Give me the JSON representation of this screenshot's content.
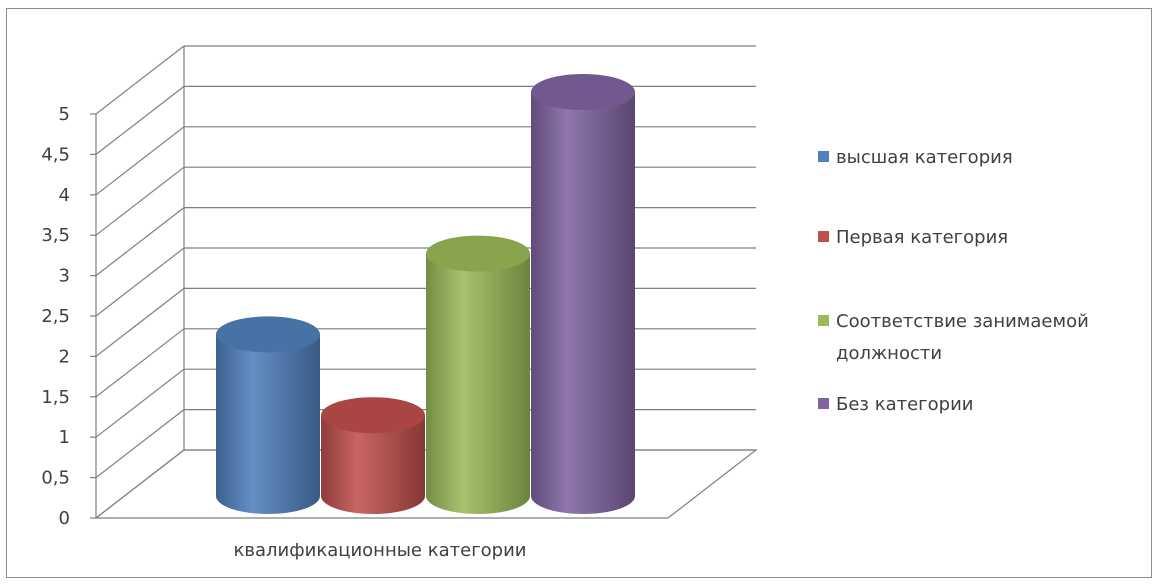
{
  "chart_data": {
    "type": "bar",
    "style": "3d-cylinder",
    "categories": [
      "квалификационные категории"
    ],
    "series": [
      {
        "name": "высшая категория",
        "values": [
          2
        ],
        "color": "#4f81bd"
      },
      {
        "name": "Первая категория",
        "values": [
          1
        ],
        "color": "#c0504d"
      },
      {
        "name": "Соответствие занимаемой должности",
        "values": [
          3
        ],
        "color": "#9bbb59"
      },
      {
        "name": "Без категории",
        "values": [
          5
        ],
        "color": "#8064a2"
      }
    ],
    "y_ticks": [
      "0",
      "0,5",
      "1",
      "1,5",
      "2",
      "2,5",
      "3",
      "3,5",
      "4",
      "4,5",
      "5"
    ],
    "ylim": [
      0,
      5
    ],
    "grid": true,
    "legend_position": "right",
    "legend": [
      {
        "lines": [
          "высшая категория"
        ],
        "color": "#4f81bd"
      },
      {
        "lines": [
          "Первая категория"
        ],
        "color": "#c0504d"
      },
      {
        "lines": [
          "Соответствие занимаемой",
          "должности"
        ],
        "color": "#9bbb59"
      },
      {
        "lines": [
          "Без категории"
        ],
        "color": "#8064a2"
      }
    ]
  }
}
